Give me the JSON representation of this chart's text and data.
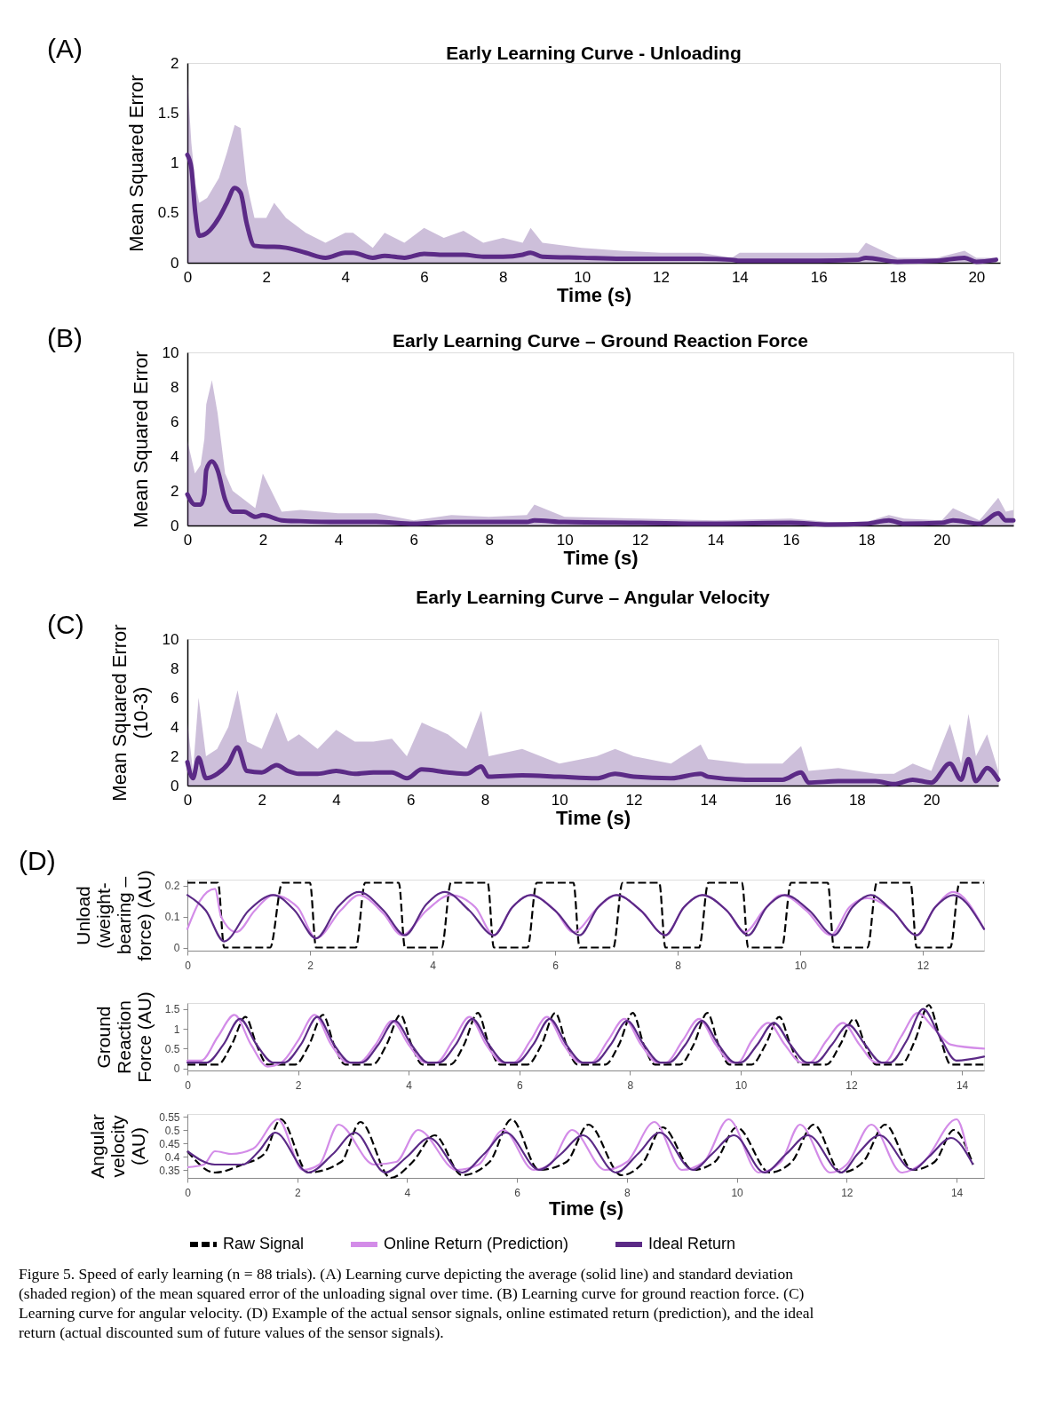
{
  "chart_data": [
    {
      "type": "line",
      "title": "Early Learning Curve - Unloading",
      "xlabel": "Time (s)",
      "ylabel": "Mean Squared Error",
      "xlim": [
        0,
        20.6
      ],
      "xticks": [
        0,
        2,
        4,
        6,
        8,
        10,
        12,
        14,
        16,
        18,
        20
      ],
      "ylim": [
        0,
        2
      ],
      "yticks": [
        0,
        0.5,
        1,
        1.5,
        2
      ],
      "annotations": [
        "(A)"
      ],
      "series": [
        {
          "color": "#5b2a86",
          "x": [
            0,
            0.1,
            0.2,
            0.3,
            0.5,
            0.8,
            1.0,
            1.2,
            1.35,
            1.5,
            1.7,
            2,
            2.2,
            2.5,
            3,
            3.5,
            4,
            4.2,
            4.7,
            5,
            5.5,
            6,
            6.5,
            7,
            7.5,
            8,
            8.5,
            8.7,
            9,
            10,
            11,
            12,
            13,
            13.8,
            14,
            15,
            16,
            17,
            17.2,
            18,
            19,
            19.7,
            20,
            20.5
          ],
          "values": [
            1.08,
            0.95,
            0.5,
            0.27,
            0.3,
            0.45,
            0.6,
            0.75,
            0.7,
            0.4,
            0.17,
            0.16,
            0.16,
            0.15,
            0.1,
            0.05,
            0.1,
            0.1,
            0.05,
            0.07,
            0.05,
            0.09,
            0.08,
            0.08,
            0.06,
            0.06,
            0.08,
            0.1,
            0.06,
            0.05,
            0.04,
            0.04,
            0.04,
            0.03,
            0.02,
            0.02,
            0.02,
            0.03,
            0.05,
            0.01,
            0.02,
            0.05,
            0.01,
            0.03
          ],
          "lower": [
            0,
            0,
            0,
            0,
            0,
            0,
            0,
            0,
            0,
            0,
            0,
            0,
            0,
            0,
            0,
            0,
            0,
            0,
            0,
            0,
            0,
            0,
            0,
            0,
            0,
            0,
            0,
            0,
            0,
            0,
            0,
            0,
            0,
            0,
            0,
            0,
            0,
            0,
            0,
            0,
            0,
            0,
            0,
            0
          ],
          "upper": [
            1.85,
            1.2,
            0.8,
            0.6,
            0.65,
            0.85,
            1.1,
            1.38,
            1.35,
            0.8,
            0.45,
            0.45,
            0.6,
            0.45,
            0.3,
            0.2,
            0.3,
            0.3,
            0.15,
            0.3,
            0.2,
            0.35,
            0.25,
            0.32,
            0.2,
            0.25,
            0.2,
            0.35,
            0.2,
            0.15,
            0.12,
            0.1,
            0.1,
            0.05,
            0.1,
            0.1,
            0.1,
            0.1,
            0.2,
            0.05,
            0.05,
            0.12,
            0.05,
            0.05
          ]
        }
      ]
    },
    {
      "type": "line",
      "title": "Early Learning Curve – Ground Reaction Force",
      "xlabel": "Time (s)",
      "ylabel": "Mean Squared Error",
      "xlim": [
        0,
        21.9
      ],
      "xticks": [
        0,
        2,
        4,
        6,
        8,
        10,
        12,
        14,
        16,
        18,
        20
      ],
      "ylim": [
        0,
        10
      ],
      "yticks": [
        0,
        2,
        4,
        6,
        8,
        10
      ],
      "annotations": [
        "(B)"
      ],
      "series": [
        {
          "color": "#5b2a86",
          "x": [
            0,
            0.2,
            0.35,
            0.45,
            0.5,
            0.65,
            0.8,
            1,
            1.2,
            1.5,
            1.8,
            2,
            2.5,
            3,
            4,
            5,
            6,
            7,
            8,
            9,
            9.2,
            10,
            12,
            14,
            16,
            17,
            18,
            18.6,
            19,
            20,
            20.3,
            21,
            21.5,
            21.7,
            21.9
          ],
          "values": [
            1.8,
            1.2,
            1.2,
            1.8,
            3.2,
            3.7,
            3.2,
            1.5,
            0.8,
            0.8,
            0.5,
            0.6,
            0.3,
            0.25,
            0.2,
            0.2,
            0.1,
            0.2,
            0.2,
            0.2,
            0.3,
            0.2,
            0.15,
            0.1,
            0.15,
            0.05,
            0.1,
            0.3,
            0.1,
            0.15,
            0.3,
            0.1,
            0.7,
            0.3,
            0.3
          ],
          "lower": [
            0,
            0,
            0,
            0,
            0,
            0,
            0,
            0,
            0,
            0,
            0,
            0,
            0,
            0,
            0,
            0,
            0,
            0,
            0,
            0,
            0,
            0,
            0,
            0,
            0,
            0,
            0,
            0,
            0,
            0,
            0,
            0,
            0,
            0,
            0
          ],
          "upper": [
            4.9,
            3,
            3.5,
            5,
            7,
            8.4,
            6.5,
            3,
            2,
            1.5,
            1,
            3,
            0.8,
            0.9,
            0.7,
            0.7,
            0.3,
            0.6,
            0.5,
            0.6,
            1.2,
            0.5,
            0.4,
            0.3,
            0.4,
            0.2,
            0.2,
            0.6,
            0.4,
            0.3,
            1,
            0.3,
            1.6,
            0.8,
            0.9
          ]
        }
      ]
    },
    {
      "type": "line",
      "title": "Early Learning Curve – Angular Velocity",
      "xlabel": "Time (s)",
      "ylabel": "Mean Squared Error (10-3)",
      "xlim": [
        0,
        21.8
      ],
      "xticks": [
        0,
        2,
        4,
        6,
        8,
        10,
        12,
        14,
        16,
        18,
        20
      ],
      "ylim": [
        0,
        10
      ],
      "yticks": [
        0,
        2,
        4,
        6,
        8,
        10
      ],
      "annotations": [
        "(C)"
      ],
      "series": [
        {
          "color": "#5b2a86",
          "x": [
            0,
            0.15,
            0.3,
            0.5,
            0.8,
            1.1,
            1.35,
            1.6,
            2,
            2.4,
            2.7,
            3,
            3.5,
            4,
            4.5,
            5,
            5.5,
            5.9,
            6.3,
            7,
            7.5,
            7.9,
            8.1,
            9,
            10,
            11,
            11.5,
            12,
            13,
            13.8,
            14,
            15,
            16,
            16.5,
            16.7,
            17.5,
            18.5,
            19,
            19.5,
            20,
            20.5,
            20.8,
            21,
            21.2,
            21.5,
            21.8
          ],
          "values": [
            1.6,
            0.5,
            1.9,
            0.5,
            0.8,
            1.5,
            2.6,
            1.0,
            0.9,
            1.4,
            1.0,
            0.8,
            0.8,
            1.0,
            0.8,
            0.9,
            0.9,
            0.5,
            1.1,
            0.9,
            0.8,
            1.3,
            0.6,
            0.7,
            0.6,
            0.5,
            0.8,
            0.6,
            0.5,
            0.8,
            0.6,
            0.4,
            0.4,
            0.9,
            0.2,
            0.3,
            0.3,
            0.1,
            0.4,
            0.2,
            1.5,
            0.4,
            1.8,
            0.3,
            1.2,
            0.4
          ],
          "lower": [
            0,
            0,
            0,
            0,
            0,
            0,
            0,
            0,
            0,
            0,
            0,
            0,
            0,
            0,
            0,
            0,
            0,
            0,
            0,
            0,
            0,
            0,
            0,
            0,
            0,
            0,
            0,
            0,
            0,
            0,
            0,
            0,
            0,
            0,
            0,
            0,
            0,
            0,
            0,
            0,
            0,
            0,
            0,
            0,
            0,
            0
          ],
          "upper": [
            4.3,
            1,
            6,
            2,
            2.5,
            4,
            6.5,
            3,
            2.5,
            5,
            3,
            3.5,
            2.5,
            3.8,
            3,
            3,
            3.2,
            2,
            4.3,
            3.5,
            2.5,
            5.1,
            2,
            2.5,
            1.5,
            2,
            2.5,
            2,
            1.5,
            2.8,
            1.8,
            1.5,
            1.5,
            2.7,
            1,
            1.2,
            0.8,
            0.8,
            1.5,
            1,
            4.2,
            1.5,
            4.9,
            2,
            3.5,
            1
          ]
        }
      ]
    },
    {
      "type": "line",
      "ylabel": "Unload (weight-bearing – force) (AU)",
      "xlim": [
        0,
        13
      ],
      "xticks": [
        0,
        2,
        4,
        6,
        8,
        10,
        12
      ],
      "ylim": [
        -0.01,
        0.22
      ],
      "yticks": [
        0,
        0.1,
        0.2
      ],
      "annotations": [
        "(D)"
      ],
      "series": [
        {
          "color": "#000000",
          "line_style": "dashed",
          "x": [
            0,
            0.5,
            0.6,
            1.35,
            1.55,
            2.0,
            2.1,
            2.75,
            2.9,
            3.45,
            3.55,
            4.15,
            4.3,
            4.9,
            5.0,
            5.55,
            5.7,
            6.3,
            6.4,
            6.95,
            7.1,
            7.7,
            7.8,
            8.35,
            8.5,
            9.05,
            9.15,
            9.7,
            9.85,
            10.45,
            10.55,
            11.1,
            11.25,
            11.8,
            11.9,
            12.45,
            12.6,
            13
          ],
          "values": [
            0.21,
            0.21,
            0,
            0,
            0.21,
            0.21,
            0,
            0,
            0.21,
            0.21,
            0,
            0,
            0.21,
            0.21,
            0,
            0,
            0.21,
            0.21,
            0,
            0,
            0.21,
            0.21,
            0,
            0,
            0.21,
            0.21,
            0,
            0,
            0.21,
            0.21,
            0,
            0,
            0.21,
            0.21,
            0,
            0,
            0.21,
            0.21
          ]
        },
        {
          "color": "#d38ce8",
          "line_style": "solid",
          "x": [
            0,
            0.2,
            0.45,
            0.55,
            0.8,
            1.1,
            1.4,
            1.8,
            2.1,
            2.5,
            2.8,
            3.2,
            3.5,
            3.9,
            4.3,
            4.7,
            5.0,
            5.3,
            5.6,
            6.0,
            6.3,
            6.7,
            7.0,
            7.4,
            7.8,
            8.1,
            8.4,
            8.8,
            9.1,
            9.4,
            9.7,
            10.1,
            10.5,
            10.8,
            11.1,
            11.5,
            11.9,
            12.2,
            12.5,
            13
          ],
          "values": [
            0.06,
            0.15,
            0.19,
            0.1,
            0.05,
            0.12,
            0.17,
            0.13,
            0.03,
            0.12,
            0.17,
            0.11,
            0.04,
            0.12,
            0.17,
            0.13,
            0.04,
            0.13,
            0.17,
            0.12,
            0.05,
            0.13,
            0.17,
            0.12,
            0.04,
            0.13,
            0.17,
            0.12,
            0.05,
            0.12,
            0.17,
            0.12,
            0.04,
            0.13,
            0.16,
            0.12,
            0.04,
            0.13,
            0.18,
            0.06
          ]
        },
        {
          "color": "#5b2a86",
          "line_style": "solid",
          "x": [
            0,
            0.3,
            0.6,
            1.0,
            1.4,
            1.75,
            2.1,
            2.45,
            2.8,
            3.2,
            3.55,
            3.9,
            4.2,
            4.6,
            5.0,
            5.3,
            5.6,
            6.0,
            6.4,
            6.7,
            7.0,
            7.4,
            7.8,
            8.1,
            8.4,
            8.8,
            9.15,
            9.45,
            9.75,
            10.15,
            10.55,
            10.85,
            11.15,
            11.5,
            11.9,
            12.2,
            12.5,
            13
          ],
          "values": [
            0.17,
            0.12,
            0.02,
            0.12,
            0.17,
            0.12,
            0.03,
            0.13,
            0.18,
            0.12,
            0.04,
            0.14,
            0.18,
            0.12,
            0.04,
            0.13,
            0.17,
            0.12,
            0.04,
            0.13,
            0.17,
            0.12,
            0.04,
            0.13,
            0.17,
            0.12,
            0.04,
            0.13,
            0.17,
            0.12,
            0.04,
            0.13,
            0.17,
            0.12,
            0.04,
            0.13,
            0.17,
            0.06
          ]
        }
      ]
    },
    {
      "type": "line",
      "ylabel": "Ground Reaction Force (AU)",
      "xlim": [
        0,
        14.4
      ],
      "xticks": [
        0,
        2,
        4,
        6,
        8,
        10,
        12,
        14
      ],
      "ylim": [
        -0.05,
        1.65
      ],
      "yticks": [
        0,
        0.5,
        1,
        1.5
      ],
      "series": [
        {
          "color": "#000000",
          "line_style": "dashed",
          "x": [
            0,
            0.55,
            0.8,
            1.05,
            1.25,
            1.45,
            1.95,
            2.2,
            2.45,
            2.65,
            2.85,
            3.35,
            3.6,
            3.85,
            4.05,
            4.25,
            4.75,
            5.0,
            5.25,
            5.45,
            5.65,
            6.15,
            6.4,
            6.65,
            6.85,
            7.05,
            7.55,
            7.8,
            8.05,
            8.25,
            8.45,
            8.9,
            9.15,
            9.4,
            9.6,
            9.8,
            10.2,
            10.45,
            10.7,
            10.9,
            11.1,
            11.55,
            11.8,
            12.05,
            12.25,
            12.45,
            12.9,
            13.15,
            13.4,
            13.6,
            13.8,
            14.4
          ],
          "values": [
            0.1,
            0.1,
            0.6,
            1.3,
            0.6,
            0.1,
            0.1,
            0.6,
            1.35,
            0.6,
            0.1,
            0.1,
            0.6,
            1.35,
            0.6,
            0.1,
            0.1,
            0.6,
            1.4,
            0.6,
            0.1,
            0.1,
            0.6,
            1.4,
            0.6,
            0.1,
            0.1,
            0.6,
            1.4,
            0.6,
            0.1,
            0.1,
            0.6,
            1.4,
            0.6,
            0.1,
            0.1,
            0.6,
            1.3,
            0.6,
            0.1,
            0.1,
            0.6,
            1.25,
            0.6,
            0.1,
            0.1,
            0.7,
            1.6,
            0.8,
            0.1,
            0.1
          ]
        },
        {
          "color": "#d38ce8",
          "line_style": "solid",
          "x": [
            0,
            0.25,
            0.55,
            0.85,
            1.15,
            1.45,
            1.7,
            2.0,
            2.3,
            2.6,
            2.9,
            3.1,
            3.4,
            3.7,
            4.0,
            4.3,
            4.5,
            4.8,
            5.1,
            5.4,
            5.7,
            5.9,
            6.2,
            6.5,
            6.8,
            7.1,
            7.3,
            7.6,
            7.9,
            8.2,
            8.5,
            8.65,
            8.95,
            9.25,
            9.55,
            9.85,
            9.95,
            10.2,
            10.5,
            10.8,
            11.1,
            11.25,
            11.55,
            11.85,
            12.15,
            12.45,
            12.6,
            12.9,
            13.2,
            13.5,
            13.8,
            14.4
          ],
          "values": [
            0.2,
            0.2,
            0.8,
            1.35,
            0.6,
            0.05,
            0.15,
            0.7,
            1.35,
            0.6,
            0.15,
            0.15,
            0.6,
            1.2,
            0.6,
            0.15,
            0.15,
            0.7,
            1.3,
            0.6,
            0.15,
            0.15,
            0.7,
            1.3,
            0.6,
            0.15,
            0.15,
            0.7,
            1.25,
            0.6,
            0.15,
            0.15,
            0.7,
            1.25,
            0.6,
            0.15,
            0.15,
            0.7,
            1.15,
            0.6,
            0.15,
            0.15,
            0.7,
            1.15,
            0.6,
            0.15,
            0.15,
            0.8,
            1.4,
            1.0,
            0.6,
            0.5
          ]
        },
        {
          "color": "#5b2a86",
          "line_style": "solid",
          "x": [
            0,
            0.35,
            0.65,
            0.95,
            1.25,
            1.55,
            1.75,
            2.05,
            2.35,
            2.65,
            2.95,
            3.15,
            3.45,
            3.75,
            4.05,
            4.35,
            4.55,
            4.85,
            5.15,
            5.45,
            5.75,
            5.95,
            6.25,
            6.55,
            6.85,
            7.15,
            7.35,
            7.65,
            7.95,
            8.25,
            8.55,
            8.7,
            9.0,
            9.3,
            9.6,
            9.9,
            10.0,
            10.3,
            10.6,
            10.9,
            11.2,
            11.35,
            11.65,
            11.95,
            12.25,
            12.55,
            12.7,
            13.0,
            13.3,
            13.6,
            13.9,
            14.4
          ],
          "values": [
            0.15,
            0.15,
            0.6,
            1.25,
            0.6,
            0.15,
            0.15,
            0.6,
            1.3,
            0.6,
            0.15,
            0.15,
            0.6,
            1.2,
            0.6,
            0.15,
            0.15,
            0.6,
            1.25,
            0.6,
            0.15,
            0.15,
            0.6,
            1.25,
            0.6,
            0.15,
            0.15,
            0.6,
            1.2,
            0.6,
            0.15,
            0.15,
            0.6,
            1.2,
            0.6,
            0.15,
            0.15,
            0.6,
            1.15,
            0.6,
            0.15,
            0.15,
            0.6,
            1.1,
            0.6,
            0.15,
            0.15,
            0.7,
            1.5,
            0.8,
            0.2,
            0.3
          ]
        }
      ]
    },
    {
      "type": "line",
      "xlabel": "Time (s)",
      "ylabel": "Angular velocity (AU)",
      "xlim": [
        0,
        14.5
      ],
      "xticks": [
        0,
        2,
        4,
        6,
        8,
        10,
        12,
        14
      ],
      "ylim": [
        0.32,
        0.56
      ],
      "yticks": [
        0.35,
        0.4,
        0.45,
        0.5,
        0.55
      ],
      "legend": "bottom",
      "annotations": [
        "Figure 5. Speed of early learning (n = 88 trials). (A) Learning curve depicting the average (solid line) and standard deviation (shaded region) of the mean squared error of the unloading signal over time. (B) Learning curve for ground reaction force. (C) Learning curve for angular velocity. (D) Example of the actual sensor signals, online estimated return (prediction), and the ideal return (actual discounted sum of future values of the sensor signals)."
      ],
      "series": [
        {
          "name": "Raw Signal",
          "color": "#000000",
          "line_style": "dashed",
          "x": [
            0,
            0.5,
            1.0,
            1.4,
            1.7,
            2.2,
            2.8,
            3.15,
            3.7,
            4.1,
            4.5,
            5.0,
            5.5,
            5.9,
            6.4,
            6.9,
            7.3,
            7.9,
            8.3,
            8.65,
            9.2,
            9.6,
            10.0,
            10.6,
            11.0,
            11.4,
            11.9,
            12.3,
            12.7,
            13.2,
            13.6,
            13.95,
            14.3
          ],
          "values": [
            0.42,
            0.34,
            0.37,
            0.41,
            0.54,
            0.34,
            0.38,
            0.53,
            0.32,
            0.38,
            0.48,
            0.33,
            0.38,
            0.54,
            0.35,
            0.38,
            0.52,
            0.33,
            0.38,
            0.51,
            0.35,
            0.38,
            0.51,
            0.34,
            0.38,
            0.52,
            0.34,
            0.38,
            0.52,
            0.35,
            0.38,
            0.5,
            0.37
          ]
        },
        {
          "name": "Online Return (Prediction)",
          "color": "#d38ce8",
          "line_style": "solid",
          "x": [
            0,
            0.3,
            0.5,
            0.8,
            1.2,
            1.65,
            2.1,
            2.4,
            2.75,
            3.4,
            3.8,
            4.2,
            4.9,
            5.3,
            5.75,
            6.3,
            6.6,
            7.0,
            7.6,
            8.0,
            8.5,
            9.0,
            9.4,
            9.85,
            10.4,
            10.8,
            11.15,
            11.7,
            12.0,
            12.45,
            13.0,
            13.4,
            14.0,
            14.2
          ],
          "values": [
            0.36,
            0.37,
            0.42,
            0.41,
            0.43,
            0.54,
            0.35,
            0.37,
            0.52,
            0.37,
            0.38,
            0.5,
            0.35,
            0.37,
            0.5,
            0.35,
            0.37,
            0.5,
            0.35,
            0.38,
            0.53,
            0.35,
            0.38,
            0.54,
            0.34,
            0.38,
            0.52,
            0.34,
            0.37,
            0.52,
            0.34,
            0.38,
            0.54,
            0.42
          ]
        },
        {
          "name": "Ideal Return",
          "color": "#5b2a86",
          "line_style": "solid",
          "x": [
            0,
            0.5,
            1.0,
            1.3,
            1.6,
            2.2,
            2.65,
            3.05,
            3.6,
            4.0,
            4.4,
            5.0,
            5.4,
            5.8,
            6.4,
            6.8,
            7.2,
            7.8,
            8.2,
            8.6,
            9.2,
            9.55,
            9.95,
            10.5,
            10.9,
            11.3,
            11.9,
            12.2,
            12.6,
            13.2,
            13.5,
            13.9,
            14.3
          ],
          "values": [
            0.42,
            0.37,
            0.37,
            0.42,
            0.49,
            0.34,
            0.41,
            0.49,
            0.34,
            0.4,
            0.47,
            0.34,
            0.41,
            0.49,
            0.35,
            0.41,
            0.48,
            0.34,
            0.41,
            0.49,
            0.35,
            0.41,
            0.48,
            0.34,
            0.41,
            0.48,
            0.34,
            0.41,
            0.48,
            0.35,
            0.4,
            0.47,
            0.37
          ]
        }
      ]
    }
  ]
}
